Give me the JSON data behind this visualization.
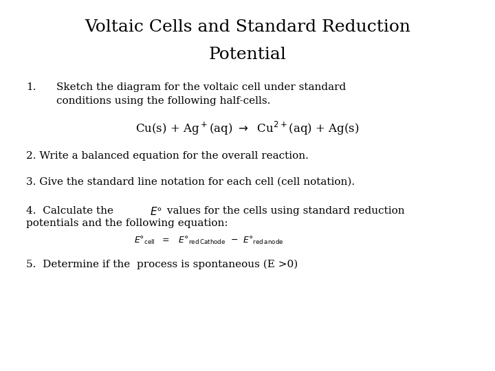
{
  "title_line1": "Voltaic Cells and Standard Reduction",
  "title_line2": "Potential",
  "title_fontsize": 18,
  "body_fontsize": 11,
  "background_color": "#ffffff",
  "text_color": "#000000",
  "item1_num": "1.",
  "item1_line1": "Sketch the diagram for the voltaic cell under standard",
  "item1_line2": "conditions using the following half-cells.",
  "item2": "2. Write a balanced equation for the overall reaction.",
  "item3": "3. Give the standard line notation for each cell (cell notation).",
  "item4_line1a": "4.  Calculate the ",
  "item4_line1b": " values for the cells using standard reduction",
  "item4_line2": "potentials and the following equation:",
  "item5": "5.  Determine if the  process is spontaneous (E >0)"
}
